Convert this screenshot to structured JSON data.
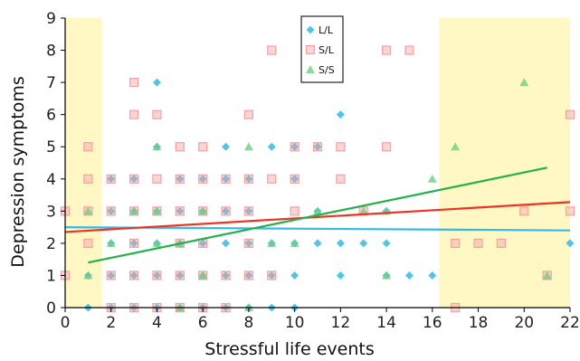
{
  "chart_data": {
    "type": "scatter",
    "xlabel": "Stressful life events",
    "ylabel": "Depression symptoms",
    "xlim": [
      0,
      22
    ],
    "ylim": [
      0,
      9
    ],
    "xticks": [
      "0",
      "2",
      "4",
      "6",
      "8",
      "10",
      "12",
      "14",
      "16",
      "18",
      "20",
      "22"
    ],
    "yticks": [
      "0",
      "1",
      "2",
      "3",
      "4",
      "5",
      "6",
      "7",
      "8",
      "9"
    ],
    "grid": false,
    "legend_position": "top-center",
    "highlight_bands": [
      {
        "x_range": [
          0,
          1.6
        ],
        "color": "#fff8c4"
      },
      {
        "x_range": [
          16.3,
          22
        ],
        "color": "#fff8c4"
      }
    ],
    "series": [
      {
        "name": "L/L",
        "marker": "diamond",
        "color": "#35b9e6",
        "line_color": "#35b9e6",
        "points": [
          [
            1,
            0
          ],
          [
            1,
            1
          ],
          [
            2,
            0
          ],
          [
            2,
            1
          ],
          [
            2,
            2
          ],
          [
            2,
            3
          ],
          [
            2,
            4
          ],
          [
            3,
            0
          ],
          [
            3,
            1
          ],
          [
            3,
            2
          ],
          [
            3,
            3
          ],
          [
            3,
            4
          ],
          [
            4,
            0
          ],
          [
            4,
            1
          ],
          [
            4,
            2
          ],
          [
            4,
            3
          ],
          [
            4,
            5
          ],
          [
            4,
            7
          ],
          [
            5,
            0
          ],
          [
            5,
            1
          ],
          [
            5,
            2
          ],
          [
            5,
            3
          ],
          [
            5,
            4
          ],
          [
            6,
            0
          ],
          [
            6,
            1
          ],
          [
            6,
            2
          ],
          [
            6,
            3
          ],
          [
            6,
            4
          ],
          [
            7,
            0
          ],
          [
            7,
            1
          ],
          [
            7,
            2
          ],
          [
            7,
            3
          ],
          [
            7,
            4
          ],
          [
            7,
            5
          ],
          [
            8,
            0
          ],
          [
            8,
            1
          ],
          [
            8,
            2
          ],
          [
            8,
            3
          ],
          [
            8,
            4
          ],
          [
            9,
            0
          ],
          [
            9,
            1
          ],
          [
            9,
            2
          ],
          [
            9,
            5
          ],
          [
            10,
            0
          ],
          [
            10,
            1
          ],
          [
            10,
            2
          ],
          [
            10,
            4
          ],
          [
            10,
            5
          ],
          [
            11,
            2
          ],
          [
            11,
            3
          ],
          [
            11,
            5
          ],
          [
            12,
            1
          ],
          [
            12,
            2
          ],
          [
            12,
            6
          ],
          [
            13,
            2
          ],
          [
            14,
            1
          ],
          [
            14,
            2
          ],
          [
            14,
            3
          ],
          [
            15,
            1
          ],
          [
            16,
            1
          ],
          [
            22,
            2
          ]
        ],
        "trend": [
          [
            0,
            2.5
          ],
          [
            22,
            2.4
          ]
        ]
      },
      {
        "name": "S/L",
        "marker": "square",
        "color": "#f4a1a1",
        "line_color": "#ee3322",
        "points": [
          [
            0,
            1
          ],
          [
            0,
            3
          ],
          [
            1,
            2
          ],
          [
            1,
            3
          ],
          [
            1,
            4
          ],
          [
            1,
            5
          ],
          [
            2,
            0
          ],
          [
            2,
            1
          ],
          [
            2,
            3
          ],
          [
            2,
            4
          ],
          [
            3,
            0
          ],
          [
            3,
            1
          ],
          [
            3,
            2
          ],
          [
            3,
            3
          ],
          [
            3,
            4
          ],
          [
            3,
            6
          ],
          [
            3,
            7
          ],
          [
            4,
            0
          ],
          [
            4,
            1
          ],
          [
            4,
            3
          ],
          [
            4,
            4
          ],
          [
            4,
            6
          ],
          [
            5,
            0
          ],
          [
            5,
            1
          ],
          [
            5,
            2
          ],
          [
            5,
            3
          ],
          [
            5,
            4
          ],
          [
            5,
            5
          ],
          [
            6,
            0
          ],
          [
            6,
            1
          ],
          [
            6,
            2
          ],
          [
            6,
            3
          ],
          [
            6,
            4
          ],
          [
            6,
            5
          ],
          [
            7,
            0
          ],
          [
            7,
            1
          ],
          [
            7,
            3
          ],
          [
            7,
            4
          ],
          [
            8,
            1
          ],
          [
            8,
            2
          ],
          [
            8,
            3
          ],
          [
            8,
            4
          ],
          [
            8,
            6
          ],
          [
            9,
            1
          ],
          [
            9,
            4
          ],
          [
            9,
            8
          ],
          [
            10,
            3
          ],
          [
            10,
            4
          ],
          [
            10,
            5
          ],
          [
            11,
            5
          ],
          [
            12,
            4
          ],
          [
            12,
            5
          ],
          [
            13,
            3
          ],
          [
            14,
            5
          ],
          [
            14,
            8
          ],
          [
            15,
            8
          ],
          [
            17,
            0
          ],
          [
            17,
            2
          ],
          [
            18,
            2
          ],
          [
            19,
            2
          ],
          [
            20,
            3
          ],
          [
            21,
            1
          ],
          [
            22,
            3
          ],
          [
            22,
            6
          ]
        ],
        "trend": [
          [
            0,
            2.35
          ],
          [
            22,
            3.28
          ]
        ]
      },
      {
        "name": "S/S",
        "marker": "triangle",
        "color": "#6fcf7f",
        "line_color": "#22b14c",
        "points": [
          [
            1,
            1
          ],
          [
            1,
            3
          ],
          [
            2,
            2
          ],
          [
            3,
            3
          ],
          [
            4,
            2
          ],
          [
            4,
            3
          ],
          [
            4,
            5
          ],
          [
            5,
            0
          ],
          [
            5,
            2
          ],
          [
            6,
            1
          ],
          [
            6,
            3
          ],
          [
            8,
            0
          ],
          [
            8,
            5
          ],
          [
            9,
            2
          ],
          [
            10,
            2
          ],
          [
            11,
            3
          ],
          [
            13,
            3
          ],
          [
            14,
            1
          ],
          [
            14,
            3
          ],
          [
            16,
            4
          ],
          [
            17,
            5
          ],
          [
            20,
            7
          ],
          [
            21,
            1
          ]
        ],
        "trend": [
          [
            1,
            1.4
          ],
          [
            21,
            4.35
          ]
        ]
      }
    ]
  }
}
